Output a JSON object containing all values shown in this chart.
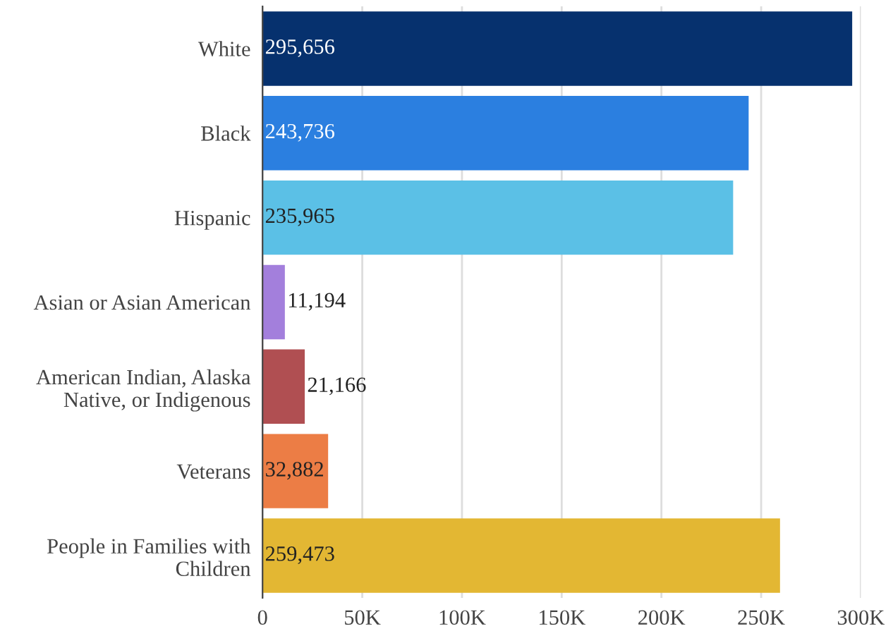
{
  "chart_data": {
    "type": "bar",
    "orientation": "horizontal",
    "categories": [
      "White",
      "Black",
      "Hispanic",
      "Asian or Asian American",
      "American Indian, Alaska\nNative, or Indigenous",
      "Veterans",
      "People in Families with\nChildren"
    ],
    "values": [
      295656,
      243736,
      235965,
      11194,
      21166,
      32882,
      259473
    ],
    "colors": [
      "#06316e",
      "#2b7fe0",
      "#5bc0e6",
      "#a37fdc",
      "#b04f52",
      "#ec7d45",
      "#e3b733"
    ],
    "value_labels": [
      "295,656",
      "243,736",
      "235,965",
      "11,194",
      "21,166",
      "32,882",
      "259,473"
    ],
    "xlim": [
      0,
      300000
    ],
    "xticks": [
      0,
      {
        "value": 50000,
        "label": "50K"
      },
      {
        "value": 100000,
        "label": "100K"
      },
      {
        "value": 150000,
        "label": "150K"
      },
      {
        "value": 200000,
        "label": "200K"
      },
      {
        "value": 250000,
        "label": "250K"
      },
      {
        "value": 300000,
        "label": "300K"
      }
    ],
    "grid": "x"
  }
}
